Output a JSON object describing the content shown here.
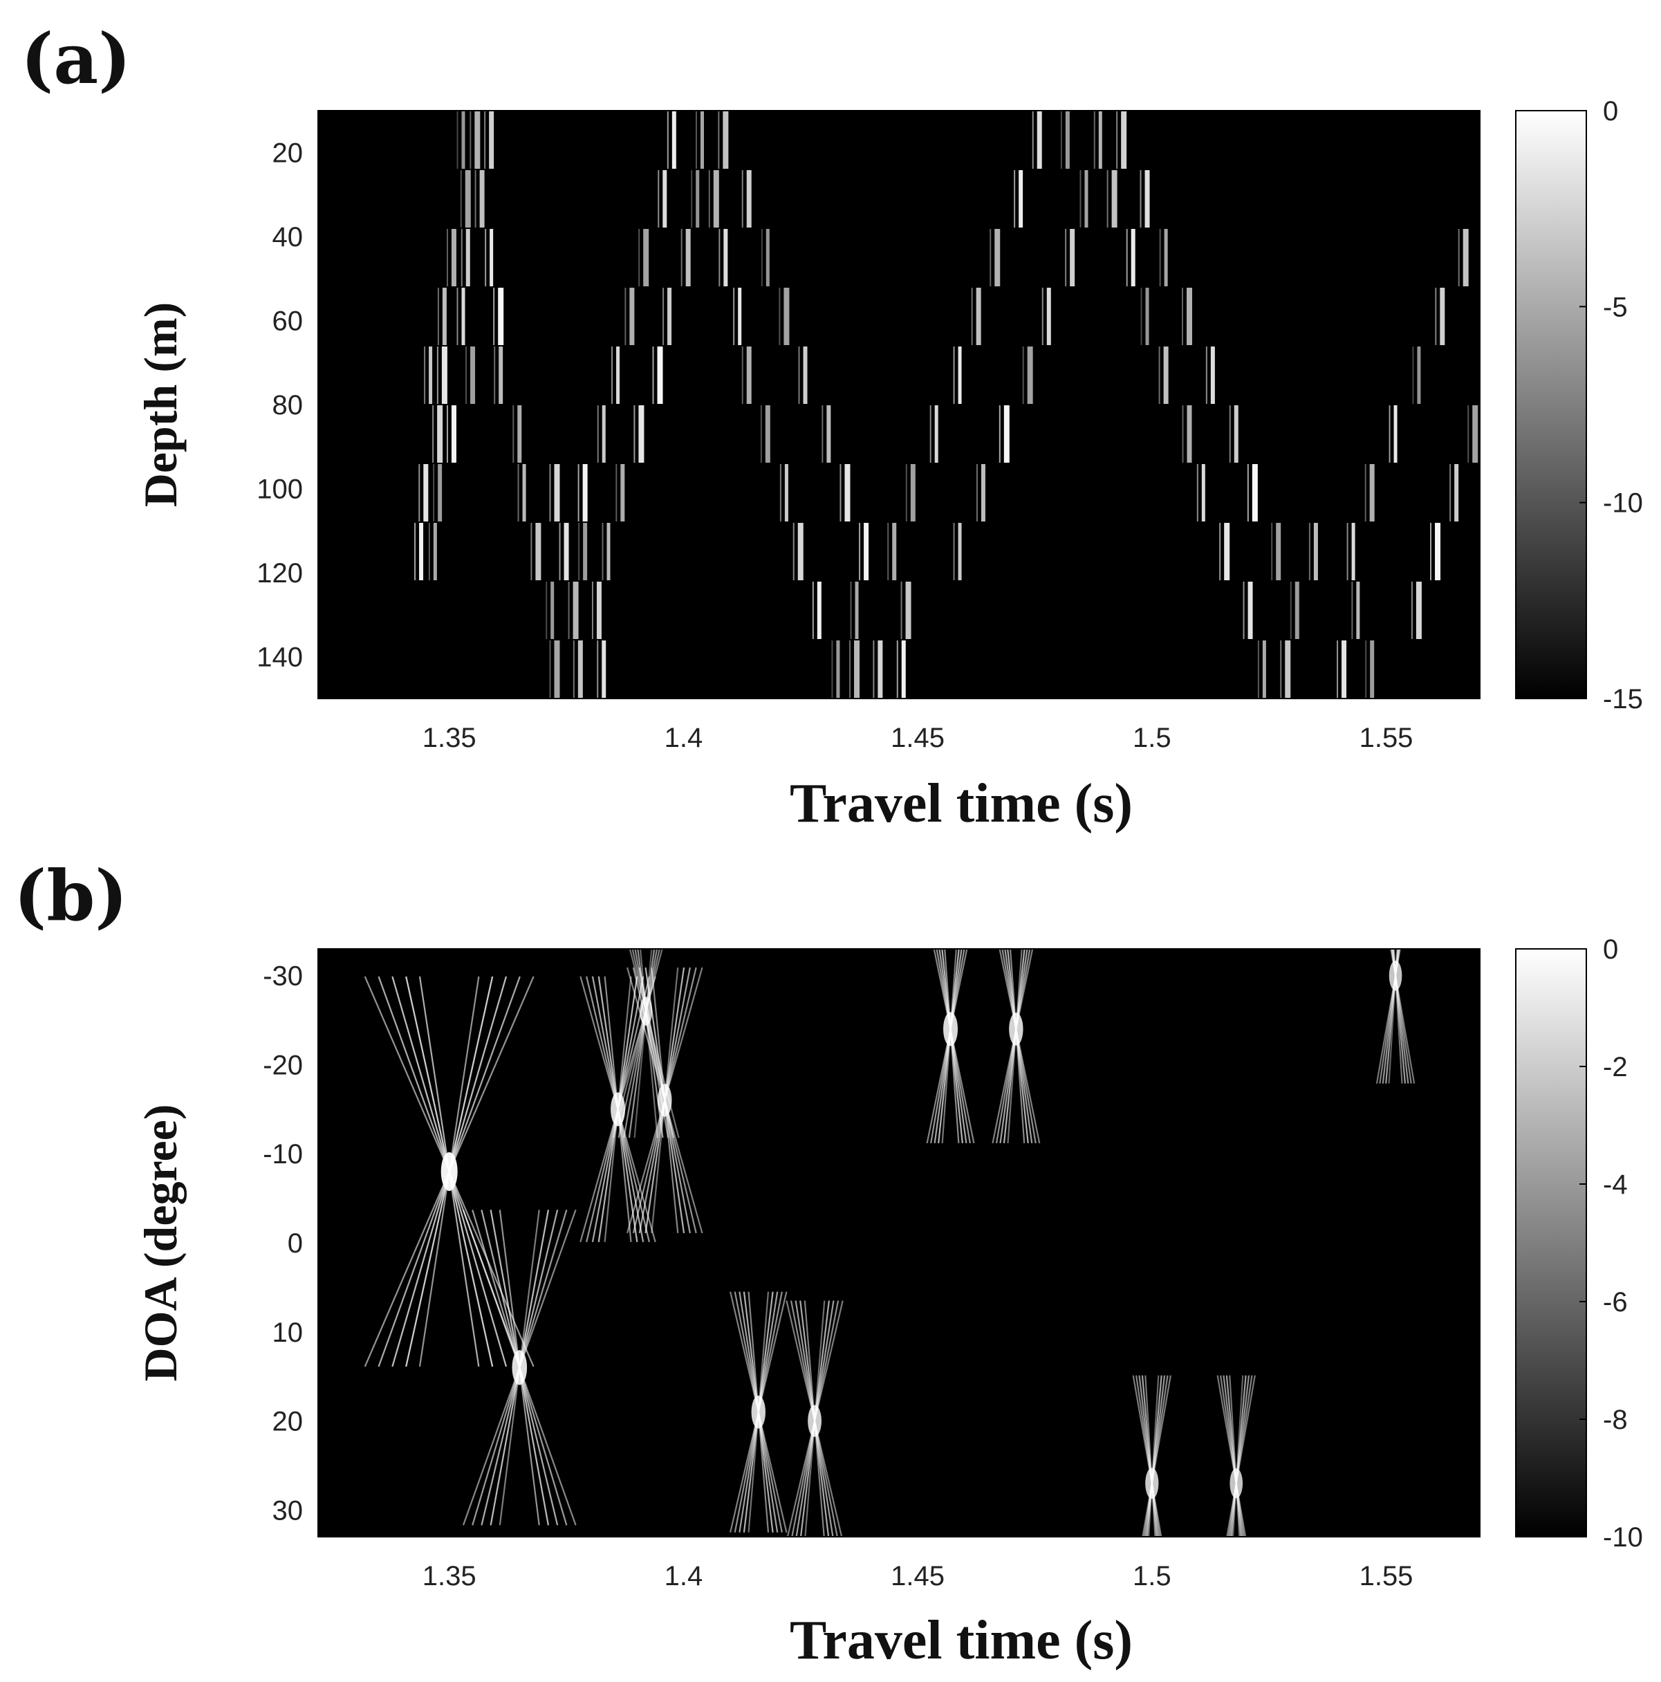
{
  "chart_data": [
    {
      "panel_label": "(a)",
      "type": "heatmap",
      "colormap": "gray",
      "xlabel": "Travel time (s)",
      "ylabel": "Depth (m)",
      "xlim": [
        1.322,
        1.57
      ],
      "ylim": [
        10,
        150
      ],
      "y_reversed": true,
      "xticks": [
        1.35,
        1.4,
        1.45,
        1.5,
        1.55
      ],
      "xticklabels": [
        "1.35",
        "1.4",
        "1.45",
        "1.5",
        "1.55"
      ],
      "yticks": [
        20,
        40,
        60,
        80,
        100,
        120,
        140
      ],
      "yticklabels": [
        "20",
        "40",
        "60",
        "80",
        "100",
        "120",
        "140"
      ],
      "colorbar": {
        "min": -15,
        "max": 0,
        "ticks": [
          0,
          -5,
          -10,
          -15
        ],
        "ticklabels": [
          "0",
          "-5",
          "-10",
          "-15"
        ]
      },
      "depth_bands": [
        {
          "top": 10,
          "bottom": 24,
          "arrivals": [
            1.353,
            1.356,
            1.359,
            1.398,
            1.404,
            1.409,
            1.476,
            1.482,
            1.489,
            1.494
          ]
        },
        {
          "top": 24,
          "bottom": 38,
          "arrivals": [
            1.354,
            1.357,
            1.396,
            1.403,
            1.407,
            1.414,
            1.472,
            1.486,
            1.492,
            1.499
          ]
        },
        {
          "top": 38,
          "bottom": 52,
          "arrivals": [
            1.351,
            1.354,
            1.359,
            1.392,
            1.401,
            1.409,
            1.418,
            1.467,
            1.483,
            1.496,
            1.503,
            1.567
          ]
        },
        {
          "top": 52,
          "bottom": 66,
          "arrivals": [
            1.349,
            1.353,
            1.361,
            1.389,
            1.397,
            1.412,
            1.422,
            1.463,
            1.478,
            1.499,
            1.508,
            1.562
          ]
        },
        {
          "top": 66,
          "bottom": 80,
          "arrivals": [
            1.346,
            1.349,
            1.355,
            1.361,
            1.386,
            1.395,
            1.414,
            1.426,
            1.459,
            1.474,
            1.503,
            1.513,
            1.557
          ]
        },
        {
          "top": 80,
          "bottom": 94,
          "arrivals": [
            1.348,
            1.351,
            1.365,
            1.383,
            1.391,
            1.418,
            1.431,
            1.454,
            1.469,
            1.508,
            1.518,
            1.552,
            1.569
          ]
        },
        {
          "top": 94,
          "bottom": 108,
          "arrivals": [
            1.345,
            1.348,
            1.366,
            1.373,
            1.379,
            1.387,
            1.422,
            1.435,
            1.449,
            1.464,
            1.511,
            1.522,
            1.547,
            1.565
          ]
        },
        {
          "top": 108,
          "bottom": 122,
          "arrivals": [
            1.344,
            1.347,
            1.369,
            1.375,
            1.379,
            1.384,
            1.425,
            1.439,
            1.445,
            1.459,
            1.516,
            1.527,
            1.535,
            1.543,
            1.561
          ]
        },
        {
          "top": 122,
          "bottom": 136,
          "arrivals": [
            1.372,
            1.377,
            1.382,
            1.429,
            1.437,
            1.448,
            1.521,
            1.531,
            1.544,
            1.557
          ]
        },
        {
          "top": 136,
          "bottom": 150,
          "arrivals": [
            1.373,
            1.378,
            1.383,
            1.433,
            1.437,
            1.442,
            1.447,
            1.524,
            1.529,
            1.541,
            1.547
          ]
        }
      ]
    },
    {
      "panel_label": "(b)",
      "type": "heatmap",
      "colormap": "gray",
      "xlabel": "Travel time (s)",
      "ylabel": "DOA (degree)",
      "xlim": [
        1.322,
        1.57
      ],
      "ylim": [
        -33,
        33
      ],
      "y_reversed": true,
      "xticks": [
        1.35,
        1.4,
        1.45,
        1.5,
        1.55
      ],
      "xticklabels": [
        "1.35",
        "1.4",
        "1.45",
        "1.5",
        "1.55"
      ],
      "yticks": [
        -30,
        -20,
        -10,
        0,
        10,
        20,
        30
      ],
      "yticklabels": [
        "-30",
        "-20",
        "-10",
        "0",
        "10",
        "20",
        "30"
      ],
      "colorbar": {
        "min": -10,
        "max": 0,
        "ticks": [
          0,
          -2,
          -4,
          -6,
          -8,
          -10
        ],
        "ticklabels": [
          "0",
          "-2",
          "-4",
          "-6",
          "-8",
          "-10"
        ]
      },
      "focal_points": [
        {
          "t": 1.35,
          "doa": -8,
          "strength": 1.0,
          "spread": 0.018
        },
        {
          "t": 1.365,
          "doa": 14,
          "strength": 0.8,
          "spread": 0.012
        },
        {
          "t": 1.386,
          "doa": -15,
          "strength": 0.75,
          "spread": 0.008
        },
        {
          "t": 1.396,
          "doa": -16,
          "strength": 0.7,
          "spread": 0.008
        },
        {
          "t": 1.392,
          "doa": -26,
          "strength": 0.5,
          "spread": 0.007
        },
        {
          "t": 1.416,
          "doa": 19,
          "strength": 0.7,
          "spread": 0.006
        },
        {
          "t": 1.428,
          "doa": 20,
          "strength": 0.65,
          "spread": 0.006
        },
        {
          "t": 1.457,
          "doa": -24,
          "strength": 0.75,
          "spread": 0.005
        },
        {
          "t": 1.471,
          "doa": -24,
          "strength": 0.7,
          "spread": 0.005
        },
        {
          "t": 1.5,
          "doa": 27,
          "strength": 0.6,
          "spread": 0.004
        },
        {
          "t": 1.518,
          "doa": 27,
          "strength": 0.55,
          "spread": 0.004
        },
        {
          "t": 1.552,
          "doa": -30,
          "strength": 0.55,
          "spread": 0.004
        }
      ]
    }
  ]
}
